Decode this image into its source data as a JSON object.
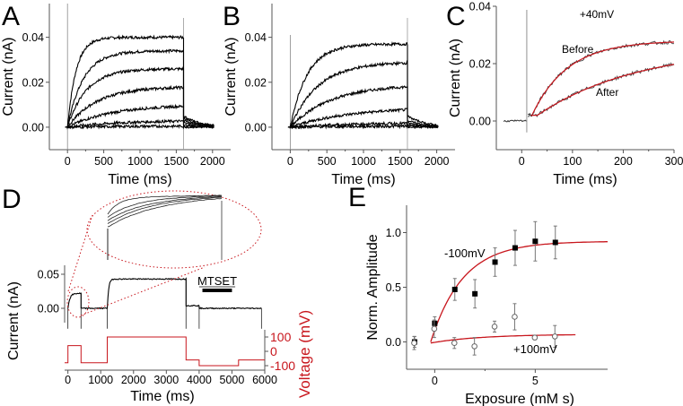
{
  "figure": {
    "panels": [
      "A",
      "B",
      "C",
      "D",
      "E"
    ]
  },
  "colors": {
    "trace": "#000000",
    "fit": "#c8161d",
    "voltage": "#c8161d",
    "axis": "#555555",
    "errorbar": "#777777"
  },
  "chart_data": [
    {
      "panel": "A",
      "type": "line",
      "xlabel": "Time (ms)",
      "ylabel": "Current (nA)",
      "xlim": [
        -250,
        2250
      ],
      "ylim": [
        -0.01,
        0.055
      ],
      "xticks": [
        0,
        500,
        1000,
        1500,
        2000
      ],
      "xtick_labels": [
        "0",
        "500",
        "1000",
        "1500",
        "2000"
      ],
      "yticks": [
        0.0,
        0.02,
        0.04
      ],
      "ytick_labels": [
        "0.00",
        "0.02",
        "0.04"
      ],
      "step_end_ms": 1600,
      "tail_end_ms": 2000,
      "series": [
        {
          "name": "sweep-1",
          "plateau": 0.04,
          "tau_ms": 120,
          "tail": 0.005
        },
        {
          "name": "sweep-2",
          "plateau": 0.034,
          "tau_ms": 220,
          "tail": 0.004
        },
        {
          "name": "sweep-3",
          "plateau": 0.026,
          "tau_ms": 260,
          "tail": 0.003
        },
        {
          "name": "sweep-4",
          "plateau": 0.018,
          "tau_ms": 400,
          "tail": 0.002
        },
        {
          "name": "sweep-5",
          "plateau": 0.01,
          "tau_ms": 600,
          "tail": 0.001
        },
        {
          "name": "sweep-6",
          "plateau": 0.003,
          "tau_ms": 700,
          "tail": 0.0005
        },
        {
          "name": "sweep-7",
          "plateau": 0.0005,
          "tau_ms": 700,
          "tail": 0.0
        }
      ]
    },
    {
      "panel": "B",
      "type": "line",
      "xlabel": "Time (ms)",
      "ylabel": "Current (nA)",
      "xlim": [
        -250,
        2250
      ],
      "ylim": [
        -0.01,
        0.055
      ],
      "xticks": [
        0,
        500,
        1000,
        1500,
        2000
      ],
      "xtick_labels": [
        "0",
        "500",
        "1000",
        "1500",
        "2000"
      ],
      "yticks": [
        0.0,
        0.02,
        0.04
      ],
      "ytick_labels": [
        "0.00",
        "0.02",
        "0.04"
      ],
      "step_end_ms": 1600,
      "tail_end_ms": 2000,
      "series": [
        {
          "name": "sweep-1",
          "plateau": 0.037,
          "tau_ms": 230,
          "tail": 0.005
        },
        {
          "name": "sweep-2",
          "plateau": 0.029,
          "tau_ms": 380,
          "tail": 0.003
        },
        {
          "name": "sweep-3",
          "plateau": 0.019,
          "tau_ms": 550,
          "tail": 0.002
        },
        {
          "name": "sweep-4",
          "plateau": 0.009,
          "tau_ms": 800,
          "tail": 0.001
        },
        {
          "name": "sweep-5",
          "plateau": 0.002,
          "tau_ms": 800,
          "tail": 0.0005
        },
        {
          "name": "sweep-6",
          "plateau": 0.0005,
          "tau_ms": 800,
          "tail": 0.0
        }
      ]
    },
    {
      "panel": "C",
      "type": "line",
      "title": "+40mV",
      "xlabel": "Time (ms)",
      "ylabel": "Current (nA)",
      "xlim": [
        -50,
        300
      ],
      "ylim": [
        -0.01,
        0.04
      ],
      "xticks": [
        0,
        100,
        200,
        300
      ],
      "xtick_labels": [
        "0",
        "100",
        "200",
        "300"
      ],
      "yticks": [
        0.0,
        0.02,
        0.04
      ],
      "ytick_labels": [
        "0.00",
        "0.02",
        "0.04"
      ],
      "step_start_ms": 10,
      "series": [
        {
          "name": "Before",
          "label": "Before",
          "plateau": 0.028,
          "tau_ms": 70,
          "value_at_300ms": 0.027
        },
        {
          "name": "After",
          "label": "After",
          "plateau": 0.026,
          "tau_ms": 200,
          "value_at_300ms": 0.02
        }
      ]
    },
    {
      "panel": "D",
      "type": "line",
      "xlabel": "Time (ms)",
      "ylabel": "Current (nA)",
      "y2label": "Voltage (mV)",
      "xlim": [
        -100,
        6000
      ],
      "ylim": [
        -0.04,
        0.065
      ],
      "y2lim": [
        -120,
        130
      ],
      "xticks": [
        0,
        1000,
        2000,
        3000,
        4000,
        5000,
        6000
      ],
      "xtick_labels": [
        "0",
        "1000",
        "2000",
        "3000",
        "4000",
        "5000",
        "6000"
      ],
      "yticks": [
        0.0,
        0.05
      ],
      "ytick_labels": [
        "0.00",
        "0.05"
      ],
      "y2ticks": [
        100,
        0,
        -100
      ],
      "y2tick_labels": [
        "100",
        "0",
        "-100"
      ],
      "annotation": "MTSET",
      "mtset_bar_ms": [
        4100,
        5000
      ],
      "current_segments": [
        {
          "t0": 0,
          "t1": 400,
          "level": 0.022
        },
        {
          "t0": 400,
          "t1": 1200,
          "level": 0.0
        },
        {
          "t0": 1200,
          "t1": 3600,
          "level": 0.043
        },
        {
          "t0": 3600,
          "t1": 4000,
          "level": 0.004
        },
        {
          "t0": 4000,
          "t1": 5900,
          "level": 0.0
        }
      ],
      "voltage_protocol": [
        {
          "t0": -100,
          "t1": 0,
          "mv": -80
        },
        {
          "t0": 0,
          "t1": 400,
          "mv": 40
        },
        {
          "t0": 400,
          "t1": 1200,
          "mv": -80
        },
        {
          "t0": 1200,
          "t1": 3600,
          "mv": 100
        },
        {
          "t0": 3600,
          "t1": 4000,
          "mv": -60
        },
        {
          "t0": 4000,
          "t1": 5200,
          "mv": -100
        },
        {
          "t0": 5200,
          "t1": 6000,
          "mv": -60
        }
      ]
    },
    {
      "panel": "E",
      "type": "scatter",
      "xlabel": "Exposure (mM s)",
      "ylabel": "Norm. Amplitude",
      "xlim": [
        -1.4,
        8.6
      ],
      "ylim": [
        -0.25,
        1.25
      ],
      "xticks": [
        0,
        5
      ],
      "xtick_labels": [
        "0",
        "5"
      ],
      "yticks": [
        0.0,
        0.5,
        1.0
      ],
      "ytick_labels": [
        "0.0",
        "0.5",
        "1.0"
      ],
      "series": [
        {
          "name": "-100mV",
          "label": "-100mV",
          "marker": "filled-square",
          "x": [
            -1,
            0,
            1,
            2,
            3,
            4,
            5,
            6
          ],
          "y": [
            0.0,
            0.17,
            0.48,
            0.44,
            0.73,
            0.86,
            0.92,
            0.91
          ],
          "err": [
            0.05,
            0.06,
            0.1,
            0.13,
            0.13,
            0.16,
            0.18,
            0.15
          ],
          "fit": {
            "type": "exp-rise",
            "x0": -0.2,
            "amplitude": 0.92,
            "tau": 1.6,
            "x_end": 8.6
          }
        },
        {
          "name": "+100mV",
          "label": "+100mV",
          "marker": "open-circle",
          "x": [
            -1,
            0,
            1,
            2,
            3,
            4,
            5,
            6
          ],
          "y": [
            -0.01,
            0.12,
            -0.01,
            -0.04,
            0.14,
            0.23,
            0.04,
            0.05
          ],
          "err": [
            0.06,
            0.08,
            0.05,
            0.08,
            0.05,
            0.12,
            0.02,
            0.1
          ],
          "fit": {
            "type": "exp-rise",
            "x0": -0.2,
            "y0": -0.01,
            "amplitude": 0.08,
            "tau": 2.5,
            "x_end": 7.0
          }
        }
      ]
    }
  ]
}
